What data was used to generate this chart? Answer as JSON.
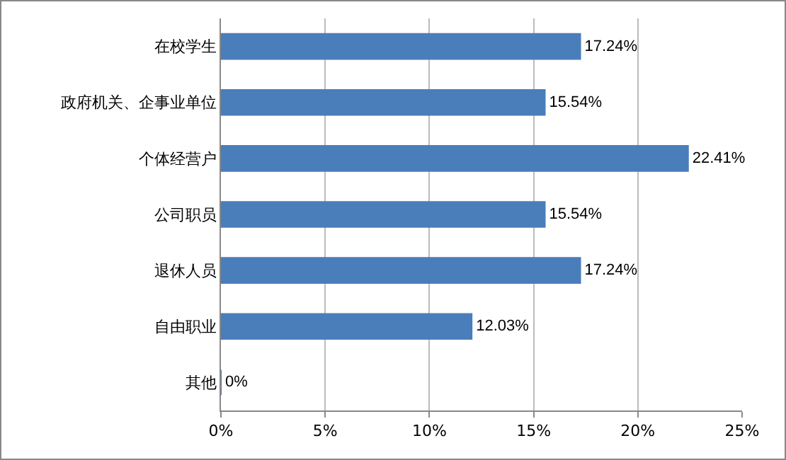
{
  "chart_data": {
    "type": "bar",
    "orientation": "horizontal",
    "categories": [
      "在校学生",
      "政府机关、企事业单位",
      "个体经营户",
      "公司职员",
      "退休人员",
      "自由职业",
      "其他"
    ],
    "values": [
      17.24,
      15.54,
      22.41,
      15.54,
      17.24,
      12.03,
      0
    ],
    "value_labels": [
      "17.24%",
      "15.54%",
      "22.41%",
      "15.54%",
      "17.24%",
      "12.03%",
      "0%"
    ],
    "color": "#4a7ebb",
    "xlim": [
      0,
      25
    ],
    "xticks": [
      {
        "value": 0,
        "label": "0%"
      },
      {
        "value": 5,
        "label": "5%"
      },
      {
        "value": 10,
        "label": "10%"
      },
      {
        "value": 15,
        "label": "15%"
      },
      {
        "value": 20,
        "label": "20%"
      },
      {
        "value": 25,
        "label": "25%"
      }
    ],
    "grid": "x"
  }
}
